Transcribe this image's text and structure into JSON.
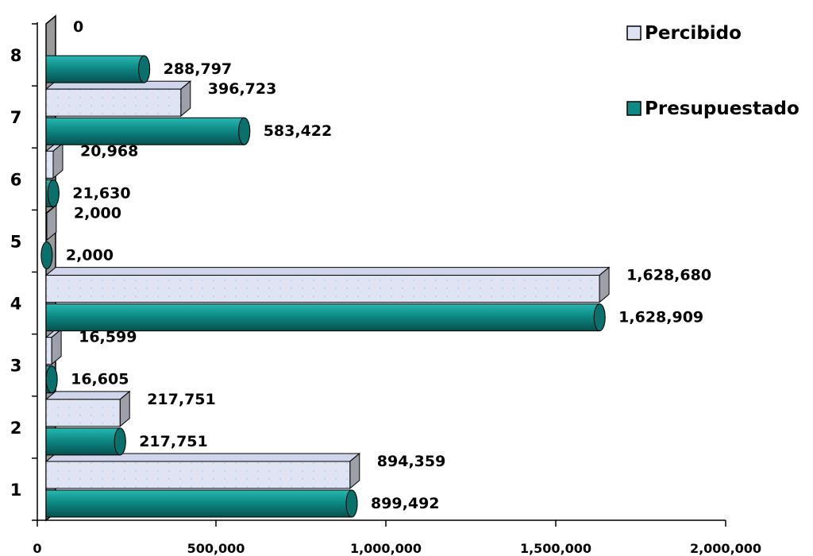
{
  "chart_data": {
    "type": "bar",
    "orientation": "horizontal",
    "categories": [
      "1",
      "2",
      "3",
      "4",
      "5",
      "6",
      "7",
      "8"
    ],
    "series": [
      {
        "name": "Percibido",
        "color": "#dde3f3",
        "values": [
          894359,
          217751,
          16599,
          1628680,
          2000,
          20968,
          396723,
          0
        ],
        "value_labels": [
          "894,359",
          "217,751",
          "16,599",
          "1,628,680",
          "2,000",
          "20,968",
          "396,723",
          "0"
        ]
      },
      {
        "name": "Presupuestado",
        "color": "#0e8a86",
        "values": [
          899492,
          217751,
          16605,
          1628909,
          2000,
          21630,
          583422,
          288797
        ],
        "value_labels": [
          "899,492",
          "217,751",
          "16,605",
          "1,628,909",
          "2,000",
          "21,630",
          "583,422",
          "288,797"
        ]
      }
    ],
    "xlim": [
      0,
      2000000
    ],
    "x_ticks": [
      0,
      500000,
      1000000,
      1500000,
      2000000
    ],
    "x_tick_labels": [
      "0",
      "500,000",
      "1,000,000",
      "1,500,000",
      "2,000,000"
    ],
    "legend_position": "top-right",
    "grid": false
  }
}
